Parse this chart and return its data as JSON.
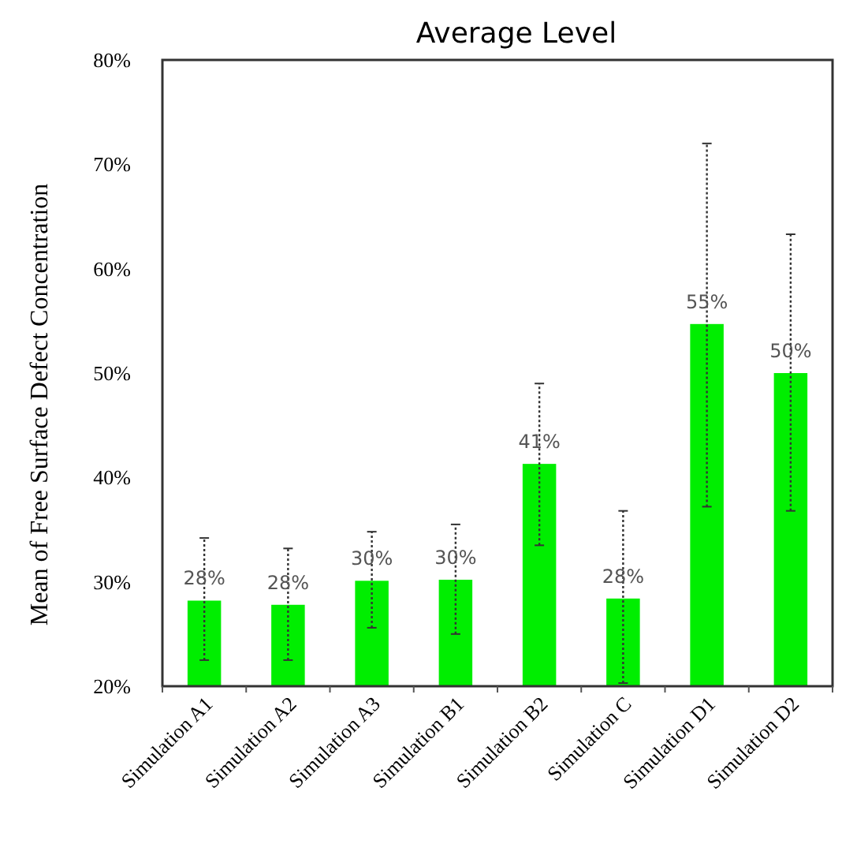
{
  "chart_data": {
    "type": "bar",
    "title": "Average Level",
    "ylabel": "Mean of Free Surface Defect Concentration",
    "categories": [
      "Simulation A1",
      "Simulation A2",
      "Simulation A3",
      "Simulation B1",
      "Simulation B2",
      "Simulation C",
      "Simulation D1",
      "Simulation D2"
    ],
    "values": [
      28.2,
      27.8,
      30.1,
      30.2,
      41.3,
      28.4,
      54.7,
      50.0
    ],
    "value_labels": [
      "28%",
      "28%",
      "30%",
      "30%",
      "41%",
      "28%",
      "55%",
      "50%"
    ],
    "errors": [
      [
        22.5,
        34.2
      ],
      [
        22.5,
        33.2
      ],
      [
        25.6,
        34.8
      ],
      [
        25,
        35.5
      ],
      [
        33.5,
        49
      ],
      [
        20.3,
        36.8
      ],
      [
        37.2,
        72
      ],
      [
        36.8,
        63.3
      ]
    ],
    "color": "#00ee00",
    "ylim": [
      20,
      80
    ],
    "yticks": [
      {
        "value": 20,
        "label": "20%"
      },
      {
        "value": 30,
        "label": "30%"
      },
      {
        "value": 40,
        "label": "40%"
      },
      {
        "value": 50,
        "label": "50%"
      },
      {
        "value": 60,
        "label": "60%"
      },
      {
        "value": 70,
        "label": "70%"
      },
      {
        "value": 80,
        "label": "80%"
      }
    ],
    "grid": false
  }
}
